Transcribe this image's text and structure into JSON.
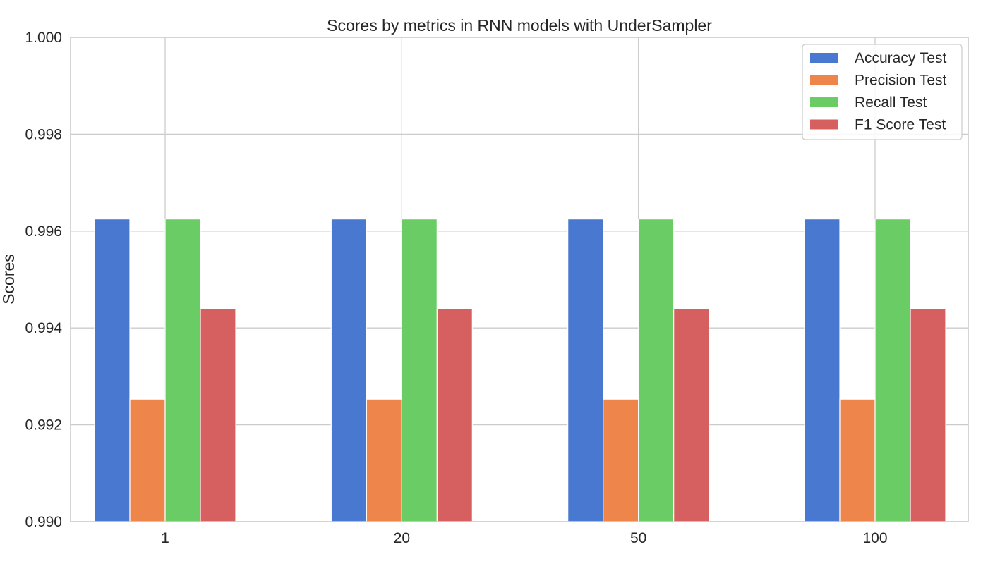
{
  "chart_data": {
    "type": "bar",
    "title": "Scores by metrics in RNN models with UnderSampler",
    "xlabel": "",
    "ylabel": "Scores",
    "categories": [
      "1",
      "20",
      "50",
      "100"
    ],
    "ylim": [
      0.99,
      1.0
    ],
    "yticks": [
      "0.990",
      "0.992",
      "0.994",
      "0.996",
      "0.998",
      "1.000"
    ],
    "grid": true,
    "legend_position": "top-right",
    "series": [
      {
        "name": "Accuracy Test",
        "color": "#4878d0",
        "values": [
          0.99625,
          0.99625,
          0.99625,
          0.99625
        ]
      },
      {
        "name": "Precision Test",
        "color": "#ee854a",
        "values": [
          0.99253,
          0.99253,
          0.99253,
          0.99253
        ]
      },
      {
        "name": "Recall Test",
        "color": "#6acc64",
        "values": [
          0.99625,
          0.99625,
          0.99625,
          0.99625
        ]
      },
      {
        "name": "F1 Score Test",
        "color": "#d65f5f",
        "values": [
          0.99439,
          0.99439,
          0.99439,
          0.99439
        ]
      }
    ]
  }
}
